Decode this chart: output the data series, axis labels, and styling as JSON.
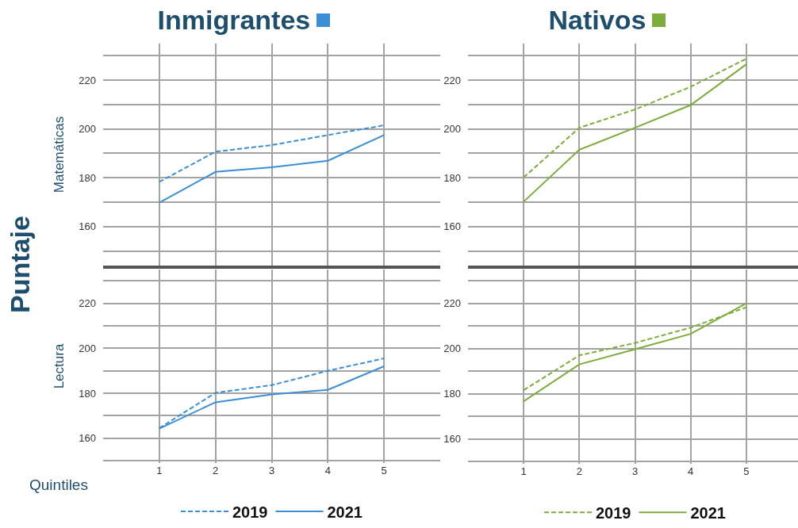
{
  "chart_data": [
    {
      "type": "line",
      "title": "Inmigrantes",
      "ylabel": "Matemáticas",
      "annotations": [
        "Puntaje"
      ],
      "x": [
        1,
        2,
        3,
        4,
        5
      ],
      "xlim": [
        0,
        6
      ],
      "xticks": [
        1,
        2,
        3,
        4,
        5
      ],
      "ylim": [
        144,
        235
      ],
      "yticks": [
        {
          "value": 150,
          "label": null
        },
        160,
        {
          "value": 170,
          "label": null
        },
        180,
        {
          "value": 190,
          "label": null
        },
        200,
        {
          "value": 210,
          "label": null
        },
        220,
        {
          "value": 230,
          "label": null
        }
      ],
      "grid": true,
      "tick_labels": "y",
      "series": [
        {
          "color": "#3a8fd6",
          "line_style": "dashed",
          "values": [
            178.3,
            190.7,
            193.4,
            197.5,
            201.5
          ]
        },
        {
          "color": "#3a8fd6",
          "line_style": "solid",
          "values": [
            169.8,
            182.4,
            184.3,
            187,
            197.5
          ]
        }
      ]
    },
    {
      "type": "line",
      "title": "Nativos",
      "x": [
        1,
        2,
        3,
        4,
        5
      ],
      "xlim": [
        0,
        6
      ],
      "xticks": [
        1,
        2,
        3,
        4,
        5
      ],
      "ylim": [
        144,
        235
      ],
      "yticks": [
        {
          "value": 150,
          "label": null
        },
        160,
        {
          "value": 170,
          "label": null
        },
        180,
        {
          "value": 190,
          "label": null
        },
        200,
        {
          "value": 210,
          "label": null
        },
        220,
        {
          "value": 230,
          "label": null
        }
      ],
      "grid": true,
      "tick_labels": "y",
      "series": [
        {
          "color": "#7cac3a",
          "line_style": "dashed",
          "values": [
            180.2,
            200.5,
            208,
            217.3,
            228.8
          ]
        },
        {
          "color": "#7cac3a",
          "line_style": "solid",
          "values": [
            170.2,
            191.5,
            200.5,
            209.8,
            226.5
          ]
        }
      ]
    },
    {
      "type": "line",
      "ylabel": "Lectura",
      "xlabel": "Quintiles",
      "x": [
        1,
        2,
        3,
        4,
        5
      ],
      "xlim": [
        0,
        6
      ],
      "xticks": [
        1,
        2,
        3,
        4,
        5
      ],
      "ylim": [
        149,
        235
      ],
      "yticks": [
        {
          "value": 150,
          "label": null
        },
        160,
        {
          "value": 170,
          "label": null
        },
        180,
        {
          "value": 190,
          "label": null
        },
        200,
        {
          "value": 210,
          "label": null
        },
        220,
        {
          "value": 230,
          "label": null
        }
      ],
      "grid": true,
      "legend": "bottom",
      "series": [
        {
          "name": "2019",
          "color": "#3a8fd6",
          "line_style": "dashed",
          "values": [
            164.5,
            180.2,
            183.6,
            190,
            195.5
          ]
        },
        {
          "name": "2021",
          "color": "#3a8fd6",
          "line_style": "solid",
          "values": [
            164.3,
            176,
            179.5,
            181.5,
            192
          ]
        }
      ]
    },
    {
      "type": "line",
      "x": [
        1,
        2,
        3,
        4,
        5
      ],
      "xlim": [
        0,
        6
      ],
      "xticks": [
        1,
        2,
        3,
        4,
        5
      ],
      "ylim": [
        149,
        235
      ],
      "yticks": [
        {
          "value": 150,
          "label": null
        },
        160,
        {
          "value": 170,
          "label": null
        },
        180,
        {
          "value": 190,
          "label": null
        },
        200,
        {
          "value": 210,
          "label": null
        },
        220,
        {
          "value": 230,
          "label": null
        }
      ],
      "grid": true,
      "legend": "bottom",
      "series": [
        {
          "name": "2019",
          "color": "#7cac3a",
          "line_style": "dashed",
          "values": [
            181.6,
            197,
            202.5,
            209.3,
            218.3
          ]
        },
        {
          "name": "2021",
          "color": "#7cac3a",
          "line_style": "solid",
          "values": [
            176.7,
            193,
            199.7,
            206.5,
            220
          ]
        }
      ]
    }
  ]
}
